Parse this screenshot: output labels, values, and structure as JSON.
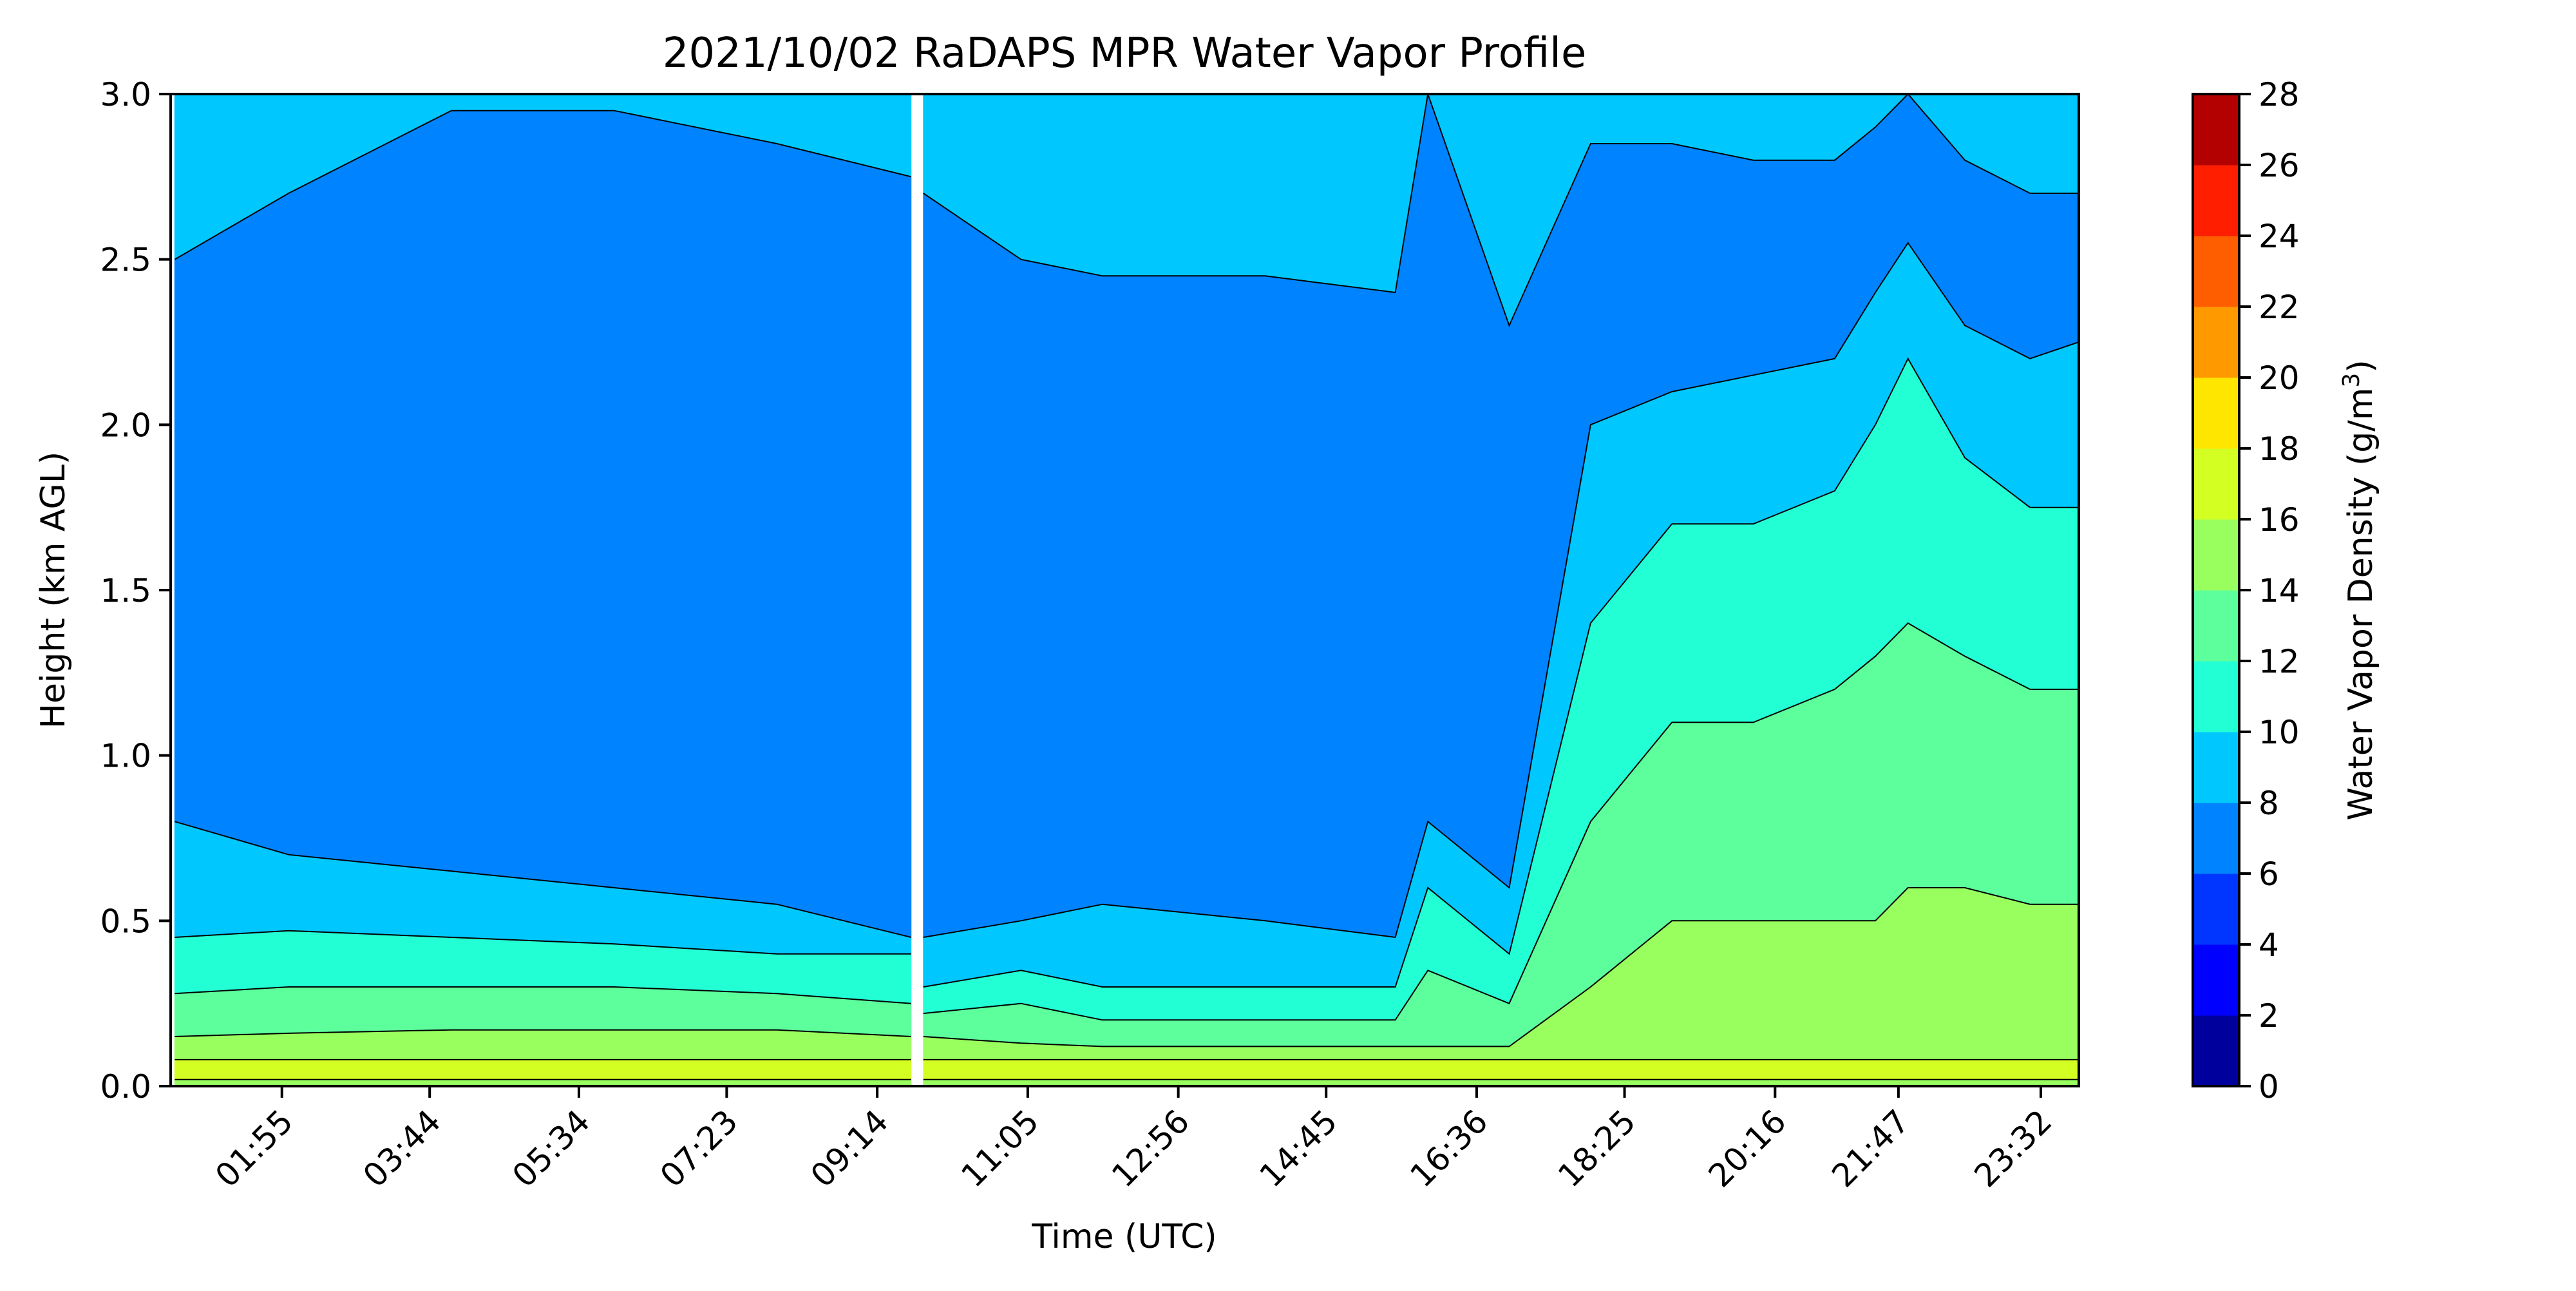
{
  "chart_data": {
    "type": "heatmap",
    "subtype": "filled-contour",
    "title": "2021/10/02 RaDAPS MPR Water Vapor Profile",
    "xlabel": "Time (UTC)",
    "ylabel": "Height (km AGL)",
    "colorbar_label": "Water Vapor Density (g/m",
    "colorbar_label_sup": "3",
    "colorbar_label_end": ")",
    "xlim_hours": [
      0.55,
      24.0
    ],
    "ylim": [
      0,
      3.0
    ],
    "x_ticks": [
      {
        "hour": 1.917,
        "label": "01:55"
      },
      {
        "hour": 3.733,
        "label": "03:44"
      },
      {
        "hour": 5.567,
        "label": "05:34"
      },
      {
        "hour": 7.383,
        "label": "07:23"
      },
      {
        "hour": 9.233,
        "label": "09:14"
      },
      {
        "hour": 11.083,
        "label": "11:05"
      },
      {
        "hour": 12.933,
        "label": "12:56"
      },
      {
        "hour": 14.75,
        "label": "14:45"
      },
      {
        "hour": 16.6,
        "label": "16:36"
      },
      {
        "hour": 18.417,
        "label": "18:25"
      },
      {
        "hour": 20.267,
        "label": "20:16"
      },
      {
        "hour": 21.783,
        "label": "21:47"
      },
      {
        "hour": 23.533,
        "label": "23:32"
      }
    ],
    "y_ticks": [
      {
        "value": 0.0,
        "label": "0.0"
      },
      {
        "value": 0.5,
        "label": "0.5"
      },
      {
        "value": 1.0,
        "label": "1.0"
      },
      {
        "value": 1.5,
        "label": "1.5"
      },
      {
        "value": 2.0,
        "label": "2.0"
      },
      {
        "value": 2.5,
        "label": "2.5"
      },
      {
        "value": 3.0,
        "label": "3.0"
      }
    ],
    "levels": [
      0,
      2,
      4,
      6,
      8,
      10,
      12,
      14,
      16,
      18,
      20,
      22,
      24,
      26,
      28
    ],
    "level_labels": [
      "0",
      "2",
      "4",
      "6",
      "8",
      "10",
      "12",
      "14",
      "16",
      "18",
      "20",
      "22",
      "24",
      "26",
      "28"
    ],
    "level_colors": [
      "#00009d",
      "#0000ff",
      "#0036ff",
      "#0083ff",
      "#00c8ff",
      "#23ffd4",
      "#5cff9b",
      "#99ff5f",
      "#d4ff23",
      "#ffe600",
      "#ff9900",
      "#ff5e00",
      "#ff1e00",
      "#b30000"
    ],
    "data_gap_hours": [
      9.7,
      9.75
    ],
    "column_profiles": [
      {
        "hour": 0.6,
        "bounds": [
          0.02,
          0.08,
          0.15,
          0.28,
          0.45,
          0.8,
          2.5
        ]
      },
      {
        "hour": 2.0,
        "bounds": [
          0.02,
          0.08,
          0.16,
          0.3,
          0.47,
          0.7,
          2.7
        ]
      },
      {
        "hour": 4.0,
        "bounds": [
          0.02,
          0.08,
          0.17,
          0.3,
          0.45,
          0.65,
          2.95
        ]
      },
      {
        "hour": 6.0,
        "bounds": [
          0.02,
          0.08,
          0.17,
          0.3,
          0.43,
          0.6,
          2.95
        ]
      },
      {
        "hour": 8.0,
        "bounds": [
          0.02,
          0.08,
          0.17,
          0.28,
          0.4,
          0.55,
          2.85
        ]
      },
      {
        "hour": 9.65,
        "bounds": [
          0.02,
          0.08,
          0.15,
          0.25,
          0.4,
          0.45,
          2.75
        ]
      },
      {
        "hour": 9.8,
        "bounds": [
          0.02,
          0.08,
          0.15,
          0.22,
          0.3,
          0.45,
          2.7
        ]
      },
      {
        "hour": 11.0,
        "bounds": [
          0.02,
          0.08,
          0.13,
          0.25,
          0.35,
          0.5,
          2.5
        ]
      },
      {
        "hour": 12.0,
        "bounds": [
          0.02,
          0.08,
          0.12,
          0.2,
          0.3,
          0.55,
          2.45
        ]
      },
      {
        "hour": 14.0,
        "bounds": [
          0.02,
          0.08,
          0.12,
          0.2,
          0.3,
          0.5,
          2.45
        ]
      },
      {
        "hour": 15.6,
        "bounds": [
          0.02,
          0.08,
          0.12,
          0.2,
          0.3,
          0.45,
          2.4
        ]
      },
      {
        "hour": 16.0,
        "bounds": [
          0.02,
          0.08,
          0.12,
          0.35,
          0.6,
          0.8,
          3.0
        ]
      },
      {
        "hour": 17.0,
        "bounds": [
          0.02,
          0.08,
          0.12,
          0.25,
          0.4,
          0.6,
          2.3
        ]
      },
      {
        "hour": 18.0,
        "bounds": [
          0.02,
          0.08,
          0.3,
          0.8,
          1.4,
          2.0,
          2.85
        ]
      },
      {
        "hour": 19.0,
        "bounds": [
          0.02,
          0.08,
          0.5,
          1.1,
          1.7,
          2.1,
          2.85
        ]
      },
      {
        "hour": 20.0,
        "bounds": [
          0.02,
          0.08,
          0.5,
          1.1,
          1.7,
          2.15,
          2.8
        ]
      },
      {
        "hour": 21.0,
        "bounds": [
          0.02,
          0.08,
          0.5,
          1.2,
          1.8,
          2.2,
          2.8
        ]
      },
      {
        "hour": 21.5,
        "bounds": [
          0.02,
          0.08,
          0.5,
          1.3,
          2.0,
          2.4,
          2.9
        ]
      },
      {
        "hour": 21.9,
        "bounds": [
          0.02,
          0.08,
          0.6,
          1.4,
          2.2,
          2.55,
          3.0
        ]
      },
      {
        "hour": 22.6,
        "bounds": [
          0.02,
          0.08,
          0.6,
          1.3,
          1.9,
          2.3,
          2.8
        ]
      },
      {
        "hour": 23.4,
        "bounds": [
          0.02,
          0.08,
          0.55,
          1.2,
          1.75,
          2.2,
          2.7
        ]
      },
      {
        "hour": 24.0,
        "bounds": [
          0.02,
          0.08,
          0.55,
          1.2,
          1.75,
          2.25,
          2.7
        ]
      }
    ],
    "band_levels": [
      16,
      14,
      12,
      10,
      8,
      6,
      8
    ],
    "band_values_after_gap": [
      16,
      14,
      12,
      10,
      8,
      6,
      8,
      10
    ]
  }
}
